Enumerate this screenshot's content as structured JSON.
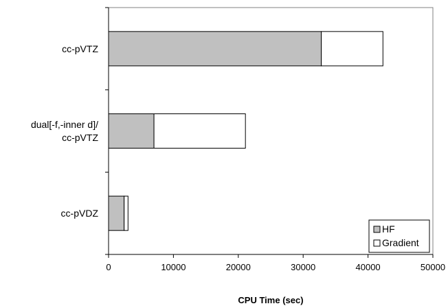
{
  "chart_data": {
    "type": "bar",
    "orientation": "horizontal",
    "stacked": true,
    "categories": [
      [
        "cc-pVTZ"
      ],
      [
        "dual[-f,-inner d]/",
        "cc-pVTZ"
      ],
      [
        "cc-pVDZ"
      ]
    ],
    "series": [
      {
        "name": "HF",
        "values": [
          32800,
          7000,
          2400
        ],
        "color": "#c0c0c0"
      },
      {
        "name": "Gradient",
        "values": [
          9500,
          14100,
          600
        ],
        "color": "#ffffff"
      }
    ],
    "xlabel": "CPU Time (sec)",
    "xlim": [
      0,
      50000
    ],
    "xticks": [
      0,
      10000,
      20000,
      30000,
      40000,
      50000
    ],
    "tick_labels": [
      "0",
      "10000",
      "20000",
      "30000",
      "40000",
      "50000"
    ],
    "grid": false,
    "legend_position": "bottom-right"
  }
}
